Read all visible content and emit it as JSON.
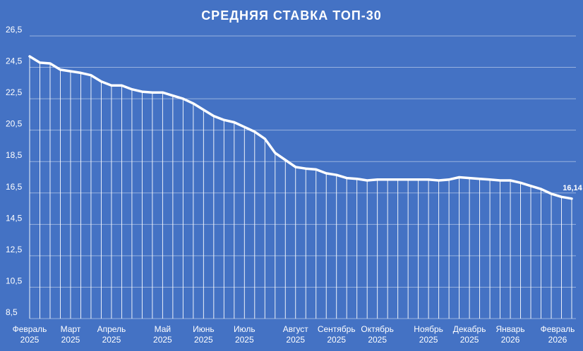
{
  "chart_data": {
    "type": "line",
    "title": "СРЕДНЯЯ СТАВКА ТОП-30",
    "xlabel": "",
    "ylabel": "",
    "ylim": [
      8.5,
      26.5
    ],
    "y_ticks": [
      "26,5",
      "24,5",
      "22,5",
      "20,5",
      "18,5",
      "16,5",
      "14,5",
      "12,5",
      "10,5",
      "8,5"
    ],
    "x_tick_labels": [
      {
        "month": "Февраль",
        "year": "2025",
        "index": 0
      },
      {
        "month": "Март",
        "year": "2025",
        "index": 4
      },
      {
        "month": "Апрель",
        "year": "2025",
        "index": 8
      },
      {
        "month": "Май",
        "year": "2025",
        "index": 13
      },
      {
        "month": "Июнь",
        "year": "2025",
        "index": 17
      },
      {
        "month": "Июль",
        "year": "2025",
        "index": 21
      },
      {
        "month": "Август",
        "year": "2025",
        "index": 26
      },
      {
        "month": "Сентябрь",
        "year": "2025",
        "index": 30
      },
      {
        "month": "Октябрь",
        "year": "2025",
        "index": 34
      },
      {
        "month": "Ноябрь",
        "year": "2025",
        "index": 39
      },
      {
        "month": "Декабрь",
        "year": "2025",
        "index": 43
      },
      {
        "month": "Январь",
        "year": "2026",
        "index": 47
      },
      {
        "month": "Февраль",
        "year": "2026",
        "index": 52
      }
    ],
    "grid": true,
    "drop_lines": true,
    "series": [
      {
        "values": [
          25.2,
          24.8,
          24.75,
          24.35,
          24.25,
          24.15,
          24.0,
          23.6,
          23.35,
          23.35,
          23.1,
          22.95,
          22.9,
          22.9,
          22.7,
          22.5,
          22.2,
          21.8,
          21.4,
          21.15,
          21.0,
          20.7,
          20.4,
          19.95,
          19.05,
          18.6,
          18.15,
          18.05,
          18.0,
          17.75,
          17.65,
          17.45,
          17.4,
          17.3,
          17.35,
          17.35,
          17.35,
          17.35,
          17.35,
          17.35,
          17.3,
          17.35,
          17.5,
          17.45,
          17.4,
          17.35,
          17.3,
          17.3,
          17.15,
          16.95,
          16.75,
          16.45,
          16.25,
          16.14
        ],
        "color": "#ffffff"
      }
    ],
    "data_labels": [
      {
        "index": 53,
        "text": "16,14"
      }
    ]
  }
}
